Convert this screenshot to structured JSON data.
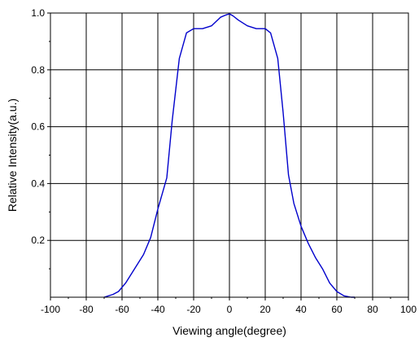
{
  "chart_data": {
    "type": "line",
    "xlabel": "Viewing angle(degree)",
    "ylabel": "Relative Intensity(a.u.)",
    "xlim": [
      -100,
      100
    ],
    "ylim": [
      0,
      1.0
    ],
    "x_ticks": [
      -100,
      -80,
      -60,
      -40,
      -20,
      0,
      20,
      40,
      60,
      80,
      100
    ],
    "x_tick_labels": [
      "-100",
      "-80",
      "-60",
      "-40",
      "-20",
      "0",
      "20",
      "40",
      "60",
      "80",
      "100"
    ],
    "y_ticks": [
      0.2,
      0.4,
      0.6,
      0.8,
      1.0
    ],
    "y_tick_labels": [
      "0.2",
      "0.4",
      "0.6",
      "0.8",
      "1.0"
    ],
    "grid": true,
    "line_color": "#0000cc",
    "series": [
      {
        "x": [
          -70,
          -65,
          -62,
          -58,
          -52,
          -48,
          -44,
          -40,
          -35,
          -32,
          -28,
          -24,
          -20,
          -15,
          -10,
          -5,
          -2,
          0,
          2,
          5,
          10,
          15,
          20,
          23,
          27,
          30,
          33,
          36,
          40,
          44,
          48,
          52,
          56,
          60,
          64,
          68,
          70
        ],
        "y": [
          0.0,
          0.01,
          0.02,
          0.05,
          0.11,
          0.15,
          0.21,
          0.31,
          0.42,
          0.62,
          0.84,
          0.93,
          0.945,
          0.945,
          0.955,
          0.985,
          0.993,
          0.997,
          0.99,
          0.975,
          0.955,
          0.945,
          0.945,
          0.93,
          0.84,
          0.65,
          0.43,
          0.33,
          0.25,
          0.19,
          0.14,
          0.1,
          0.05,
          0.02,
          0.005,
          0.0,
          0.0
        ]
      }
    ]
  }
}
